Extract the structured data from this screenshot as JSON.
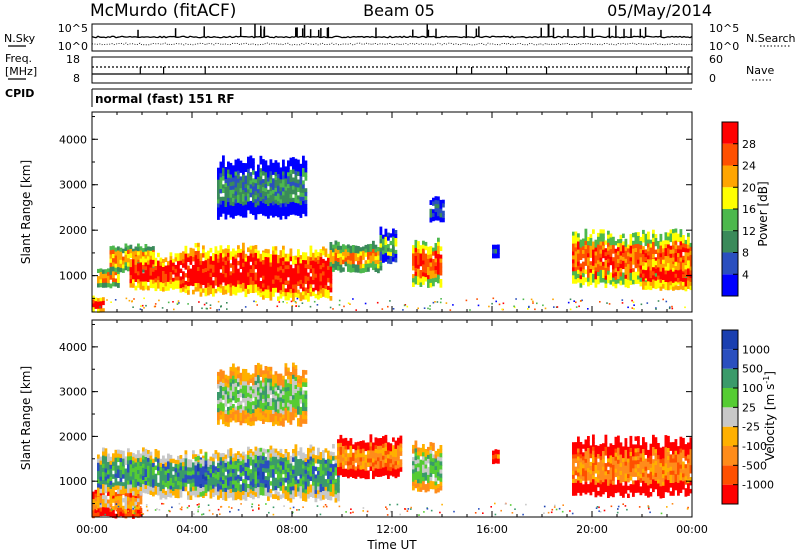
{
  "header": {
    "station": "McMurdo (fitACF)",
    "beam": "Beam 05",
    "date": "05/May/2014"
  },
  "top_panels": {
    "nsky_label": "N.Sky",
    "nsearch_label": "N.Search",
    "nsky_ticks": [
      "10^5",
      "10^0"
    ],
    "nsearch_ticks": [
      "10^5",
      "10^0"
    ],
    "freq_label_1": "Freq.",
    "freq_label_2": "[MHz]",
    "freq_ticks": [
      "18",
      "8"
    ],
    "nave_label": "Nave",
    "nave_ticks": [
      "60",
      "0"
    ],
    "cpid_label": "CPID",
    "cpid_text": "normal (fast) 151 RF"
  },
  "colors": {
    "power": [
      "#0000ff",
      "#2a4fbf",
      "#3a8a5a",
      "#4db84d",
      "#ffff00",
      "#ffa500",
      "#ff5000",
      "#ff0000"
    ],
    "velocity": [
      "#ff0000",
      "#ff5000",
      "#ff8c1a",
      "#ffb000",
      "#c8c8c8",
      "#55cc33",
      "#3a9a6a",
      "#2a4fbf",
      "#1a3fb0"
    ],
    "ground_scatter": "#808080"
  },
  "power_colorbar": {
    "label": "Power [dB]",
    "ticks": [
      "28",
      "24",
      "20",
      "16",
      "12",
      "8",
      "4"
    ]
  },
  "velocity_colorbar": {
    "label": "Velocity [m s",
    "label_sup": "-1",
    "label_end": "]",
    "ticks": [
      "1000",
      "500",
      "100",
      "25",
      "-25",
      "-100",
      "-500",
      "-1000"
    ]
  },
  "chart_data": [
    {
      "type": "heatmap",
      "name": "power",
      "ylabel": "Slant Range [km]",
      "y_ticks": [
        "4000",
        "3000",
        "2000",
        "1000"
      ],
      "y_tick_values": [
        4000,
        3000,
        2000,
        1000
      ],
      "ylim": [
        200,
        4600
      ],
      "xlim_hours": [
        0,
        24
      ],
      "colorbar_range_db": [
        0,
        32
      ],
      "echo_regions": [
        {
          "t0": 0.0,
          "t1": 0.5,
          "r_lo": 200,
          "r_hi": 520,
          "level": 7
        },
        {
          "t0": 0.2,
          "t1": 1.0,
          "r_lo": 750,
          "r_hi": 1150,
          "level": 5
        },
        {
          "t0": 0.7,
          "t1": 2.5,
          "r_lo": 1100,
          "r_hi": 1650,
          "level": 5
        },
        {
          "t0": 1.5,
          "t1": 3.5,
          "r_lo": 700,
          "r_hi": 1450,
          "level": 7
        },
        {
          "t0": 3.5,
          "t1": 6.8,
          "r_lo": 600,
          "r_hi": 1600,
          "level": 7
        },
        {
          "t0": 6.8,
          "t1": 9.5,
          "r_lo": 500,
          "r_hi": 1550,
          "level": 7
        },
        {
          "t0": 9.5,
          "t1": 11.5,
          "r_lo": 1100,
          "r_hi": 1700,
          "level": 5
        },
        {
          "t0": 11.5,
          "t1": 12.1,
          "r_lo": 1300,
          "r_hi": 2000,
          "level": 3
        },
        {
          "t0": 12.8,
          "t1": 13.9,
          "r_lo": 800,
          "r_hi": 1750,
          "level": 6
        },
        {
          "t0": 13.5,
          "t1": 14.0,
          "r_lo": 2200,
          "r_hi": 2700,
          "level": 1
        },
        {
          "t0": 16.0,
          "t1": 16.3,
          "r_lo": 1400,
          "r_hi": 1700,
          "level": 1
        },
        {
          "t0": 19.2,
          "t1": 24.0,
          "r_lo": 800,
          "r_hi": 1900,
          "level": 6
        },
        {
          "t0": 22.0,
          "t1": 24.0,
          "r_lo": 700,
          "r_hi": 1300,
          "level": 7
        },
        {
          "t0": 5.0,
          "t1": 8.5,
          "r_lo": 2300,
          "r_hi": 3500,
          "level": 2
        }
      ]
    },
    {
      "type": "heatmap",
      "name": "velocity",
      "ylabel": "Slant Range [km]",
      "y_ticks": [
        "4000",
        "3000",
        "2000",
        "1000"
      ],
      "y_tick_values": [
        4000,
        3000,
        2000,
        1000
      ],
      "ylim": [
        200,
        4600
      ],
      "xlim_hours": [
        0,
        24
      ],
      "xlabel": "Time UT",
      "x_ticks": [
        "00:00",
        "04:00",
        "08:00",
        "12:00",
        "16:00",
        "20:00",
        "00:00"
      ],
      "x_tick_hours": [
        0,
        4,
        8,
        12,
        16,
        20,
        24
      ],
      "echo_regions": [
        {
          "t0": 0.0,
          "t1": 2.0,
          "r_lo": 200,
          "r_hi": 800,
          "level": 3
        },
        {
          "t0": 0.2,
          "t1": 2.5,
          "r_lo": 700,
          "r_hi": 1650,
          "level": 6
        },
        {
          "t0": 2.5,
          "t1": 5.0,
          "r_lo": 650,
          "r_hi": 1600,
          "level": 6
        },
        {
          "t0": 4.1,
          "t1": 4.5,
          "r_lo": 700,
          "r_hi": 1550,
          "level": 7
        },
        {
          "t0": 5.0,
          "t1": 6.6,
          "r_lo": 600,
          "r_hi": 1650,
          "level": 6
        },
        {
          "t0": 6.6,
          "t1": 7.0,
          "r_lo": 700,
          "r_hi": 1750,
          "level": 7
        },
        {
          "t0": 7.0,
          "t1": 9.8,
          "r_lo": 600,
          "r_hi": 1700,
          "level": 6
        },
        {
          "t0": 9.8,
          "t1": 12.3,
          "r_lo": 1100,
          "r_hi": 1950,
          "level": 2
        },
        {
          "t0": 12.8,
          "t1": 13.9,
          "r_lo": 800,
          "r_hi": 1800,
          "level": 5
        },
        {
          "t0": 16.0,
          "t1": 16.3,
          "r_lo": 1400,
          "r_hi": 1700,
          "level": 2
        },
        {
          "t0": 19.2,
          "t1": 24.0,
          "r_lo": 700,
          "r_hi": 1900,
          "level": 2
        },
        {
          "t0": 5.0,
          "t1": 8.5,
          "r_lo": 2300,
          "r_hi": 3500,
          "level": 5
        }
      ]
    }
  ]
}
